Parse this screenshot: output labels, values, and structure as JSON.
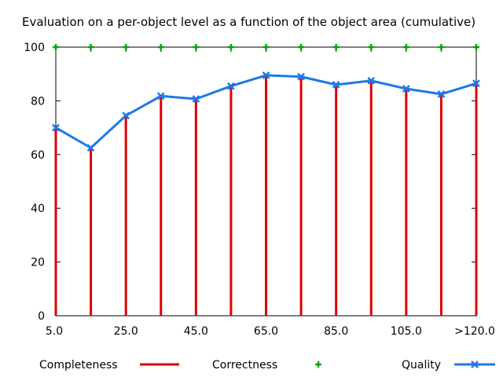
{
  "chart_data": {
    "type": "line",
    "title": "Evaluation on a per-object level as a function of the object area (cumulative)",
    "x_tick_labels": [
      "5.0",
      "25.0",
      "45.0",
      "65.0",
      "85.0",
      "105.0",
      ">120.0"
    ],
    "y_ticks": [
      "0",
      "20",
      "40",
      "60",
      "80",
      "100"
    ],
    "ylim": [
      0,
      100
    ],
    "grid": false,
    "legend_position": "bottom",
    "series": [
      {
        "name": "Completeness",
        "style": "impulses",
        "color": "#dd0000",
        "values": [
          70,
          62.5,
          74.5,
          81.8,
          80.7,
          85.5,
          89.5,
          89,
          86,
          87.5,
          84.5,
          82.5,
          86.5
        ]
      },
      {
        "name": "Correctness",
        "style": "points",
        "marker": "plus",
        "color": "#00aa00",
        "values": [
          100,
          100,
          100,
          100,
          100,
          100,
          100,
          100,
          100,
          100,
          100,
          100,
          100
        ]
      },
      {
        "name": "Quality",
        "style": "linespoints",
        "marker": "x",
        "color": "#1e78e6",
        "values": [
          70,
          62.5,
          74.5,
          81.8,
          80.7,
          85.5,
          89.5,
          89,
          86,
          87.5,
          84.5,
          82.5,
          86.5
        ]
      }
    ]
  }
}
